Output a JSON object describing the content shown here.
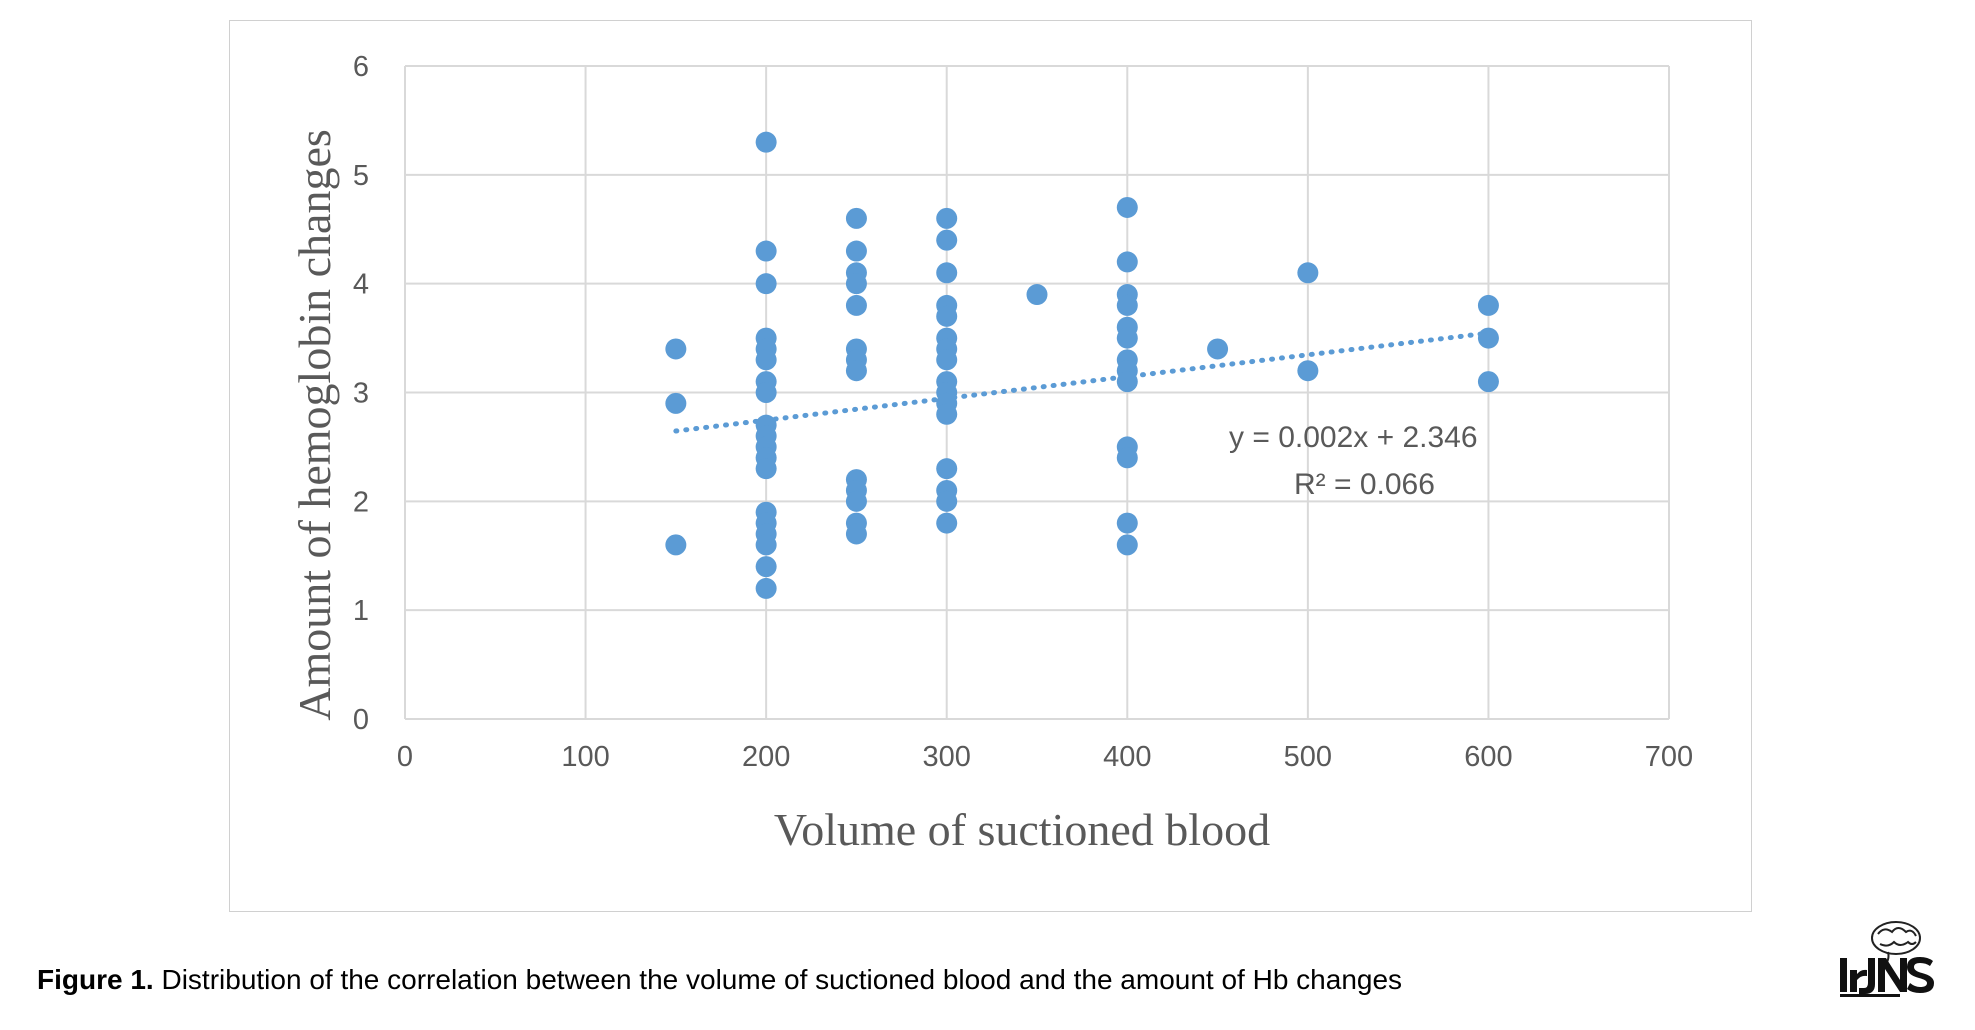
{
  "chart_data": {
    "type": "scatter",
    "xlabel": "Volume of suctioned blood",
    "ylabel": "Amount of hemoglobin changes",
    "xlim": [
      0,
      700
    ],
    "ylim": [
      0,
      6
    ],
    "x_ticks": [
      "0",
      "100",
      "200",
      "300",
      "400",
      "500",
      "600",
      "700"
    ],
    "y_ticks": [
      "0",
      "1",
      "2",
      "3",
      "4",
      "5",
      "6"
    ],
    "grid": true,
    "marker_color": "#5b9bd5",
    "trendline": {
      "type": "linear",
      "style": "dotted",
      "slope": 0.002,
      "intercept": 2.346,
      "x_range": [
        150,
        600
      ]
    },
    "equation_label": "y = 0.002x + 2.346",
    "r2_label": "R² = 0.066",
    "points": [
      {
        "x": 150,
        "y": 3.4
      },
      {
        "x": 150,
        "y": 2.9
      },
      {
        "x": 150,
        "y": 1.6
      },
      {
        "x": 200,
        "y": 5.3
      },
      {
        "x": 200,
        "y": 4.3
      },
      {
        "x": 200,
        "y": 4.0
      },
      {
        "x": 200,
        "y": 3.5
      },
      {
        "x": 200,
        "y": 3.4
      },
      {
        "x": 200,
        "y": 3.3
      },
      {
        "x": 200,
        "y": 3.1
      },
      {
        "x": 200,
        "y": 3.0
      },
      {
        "x": 200,
        "y": 2.7
      },
      {
        "x": 200,
        "y": 2.6
      },
      {
        "x": 200,
        "y": 2.5
      },
      {
        "x": 200,
        "y": 2.4
      },
      {
        "x": 200,
        "y": 2.3
      },
      {
        "x": 200,
        "y": 1.9
      },
      {
        "x": 200,
        "y": 1.8
      },
      {
        "x": 200,
        "y": 1.7
      },
      {
        "x": 200,
        "y": 1.6
      },
      {
        "x": 200,
        "y": 1.4
      },
      {
        "x": 200,
        "y": 1.2
      },
      {
        "x": 250,
        "y": 4.6
      },
      {
        "x": 250,
        "y": 4.3
      },
      {
        "x": 250,
        "y": 4.1
      },
      {
        "x": 250,
        "y": 4.0
      },
      {
        "x": 250,
        "y": 3.8
      },
      {
        "x": 250,
        "y": 3.4
      },
      {
        "x": 250,
        "y": 3.3
      },
      {
        "x": 250,
        "y": 3.2
      },
      {
        "x": 250,
        "y": 2.2
      },
      {
        "x": 250,
        "y": 2.1
      },
      {
        "x": 250,
        "y": 2.0
      },
      {
        "x": 250,
        "y": 1.8
      },
      {
        "x": 250,
        "y": 1.7
      },
      {
        "x": 300,
        "y": 4.6
      },
      {
        "x": 300,
        "y": 4.4
      },
      {
        "x": 300,
        "y": 4.1
      },
      {
        "x": 300,
        "y": 3.8
      },
      {
        "x": 300,
        "y": 3.7
      },
      {
        "x": 300,
        "y": 3.5
      },
      {
        "x": 300,
        "y": 3.4
      },
      {
        "x": 300,
        "y": 3.3
      },
      {
        "x": 300,
        "y": 3.1
      },
      {
        "x": 300,
        "y": 3.0
      },
      {
        "x": 300,
        "y": 2.9
      },
      {
        "x": 300,
        "y": 2.8
      },
      {
        "x": 300,
        "y": 2.3
      },
      {
        "x": 300,
        "y": 2.1
      },
      {
        "x": 300,
        "y": 2.0
      },
      {
        "x": 300,
        "y": 1.8
      },
      {
        "x": 350,
        "y": 3.9
      },
      {
        "x": 400,
        "y": 4.7
      },
      {
        "x": 400,
        "y": 4.2
      },
      {
        "x": 400,
        "y": 3.9
      },
      {
        "x": 400,
        "y": 3.8
      },
      {
        "x": 400,
        "y": 3.6
      },
      {
        "x": 400,
        "y": 3.5
      },
      {
        "x": 400,
        "y": 3.3
      },
      {
        "x": 400,
        "y": 3.2
      },
      {
        "x": 400,
        "y": 3.1
      },
      {
        "x": 400,
        "y": 2.5
      },
      {
        "x": 400,
        "y": 2.4
      },
      {
        "x": 400,
        "y": 1.8
      },
      {
        "x": 400,
        "y": 1.6
      },
      {
        "x": 450,
        "y": 3.4
      },
      {
        "x": 500,
        "y": 4.1
      },
      {
        "x": 500,
        "y": 3.2
      },
      {
        "x": 600,
        "y": 3.8
      },
      {
        "x": 600,
        "y": 3.5
      },
      {
        "x": 600,
        "y": 3.1
      }
    ]
  },
  "caption": {
    "label": "Figure 1.",
    "text": " Distribution of the correlation between the volume of suctioned blood and the amount of Hb changes"
  },
  "logo": {
    "text": "IrJNS"
  }
}
